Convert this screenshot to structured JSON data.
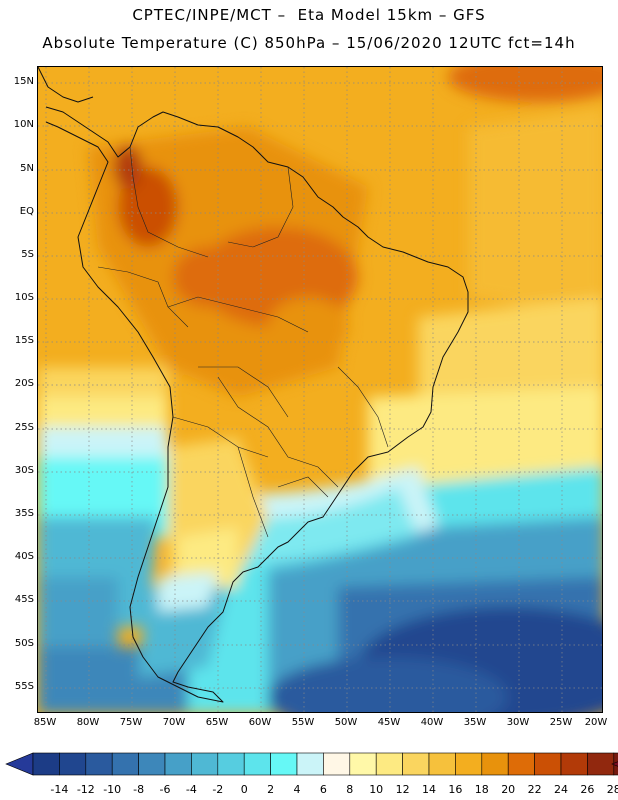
{
  "header": {
    "line1": "CPTEC/INPE/MCT –  Eta Model 15km – GFS",
    "line2": "Absolute Temperature (C) 850hPa – 15/06/2020 12UTC fct=14h"
  },
  "map": {
    "region": "South America",
    "lat_labels": [
      "15N",
      "10N",
      "5N",
      "EQ",
      "5S",
      "10S",
      "15S",
      "20S",
      "25S",
      "30S",
      "35S",
      "40S",
      "45S",
      "50S",
      "55S"
    ],
    "lon_labels": [
      "85W",
      "80W",
      "75W",
      "70W",
      "65W",
      "60W",
      "55W",
      "50W",
      "45W",
      "40W",
      "35W",
      "30W",
      "25W",
      "20W"
    ],
    "lat_range": [
      -58,
      17
    ],
    "lon_range": [
      -86,
      -20
    ],
    "graticule": "dotted",
    "field": "temperature at 850hPa (C)"
  },
  "colorbar": {
    "unit": "C",
    "tick_labels": [
      "-14",
      "-12",
      "-10",
      "-8",
      "-6",
      "-4",
      "-2",
      "0",
      "2",
      "4",
      "6",
      "8",
      "10",
      "12",
      "14",
      "16",
      "18",
      "20",
      "22",
      "24",
      "26",
      "28"
    ],
    "colors": [
      "#1c3c86",
      "#20468f",
      "#2a5a9e",
      "#3472ae",
      "#3d87ba",
      "#46a0c8",
      "#4fb8d4",
      "#56cde0",
      "#5de4ec",
      "#66f8f6",
      "#cbf4f8",
      "#fff7e6",
      "#fff8a8",
      "#fdea82",
      "#fad55f",
      "#f6c13c",
      "#f3ae1f",
      "#e8920c",
      "#de6c07",
      "#cb5005",
      "#b23a08",
      "#91280e",
      "#761a0f"
    ],
    "under_color": "#253a99",
    "over_color": "#7a0d22"
  }
}
